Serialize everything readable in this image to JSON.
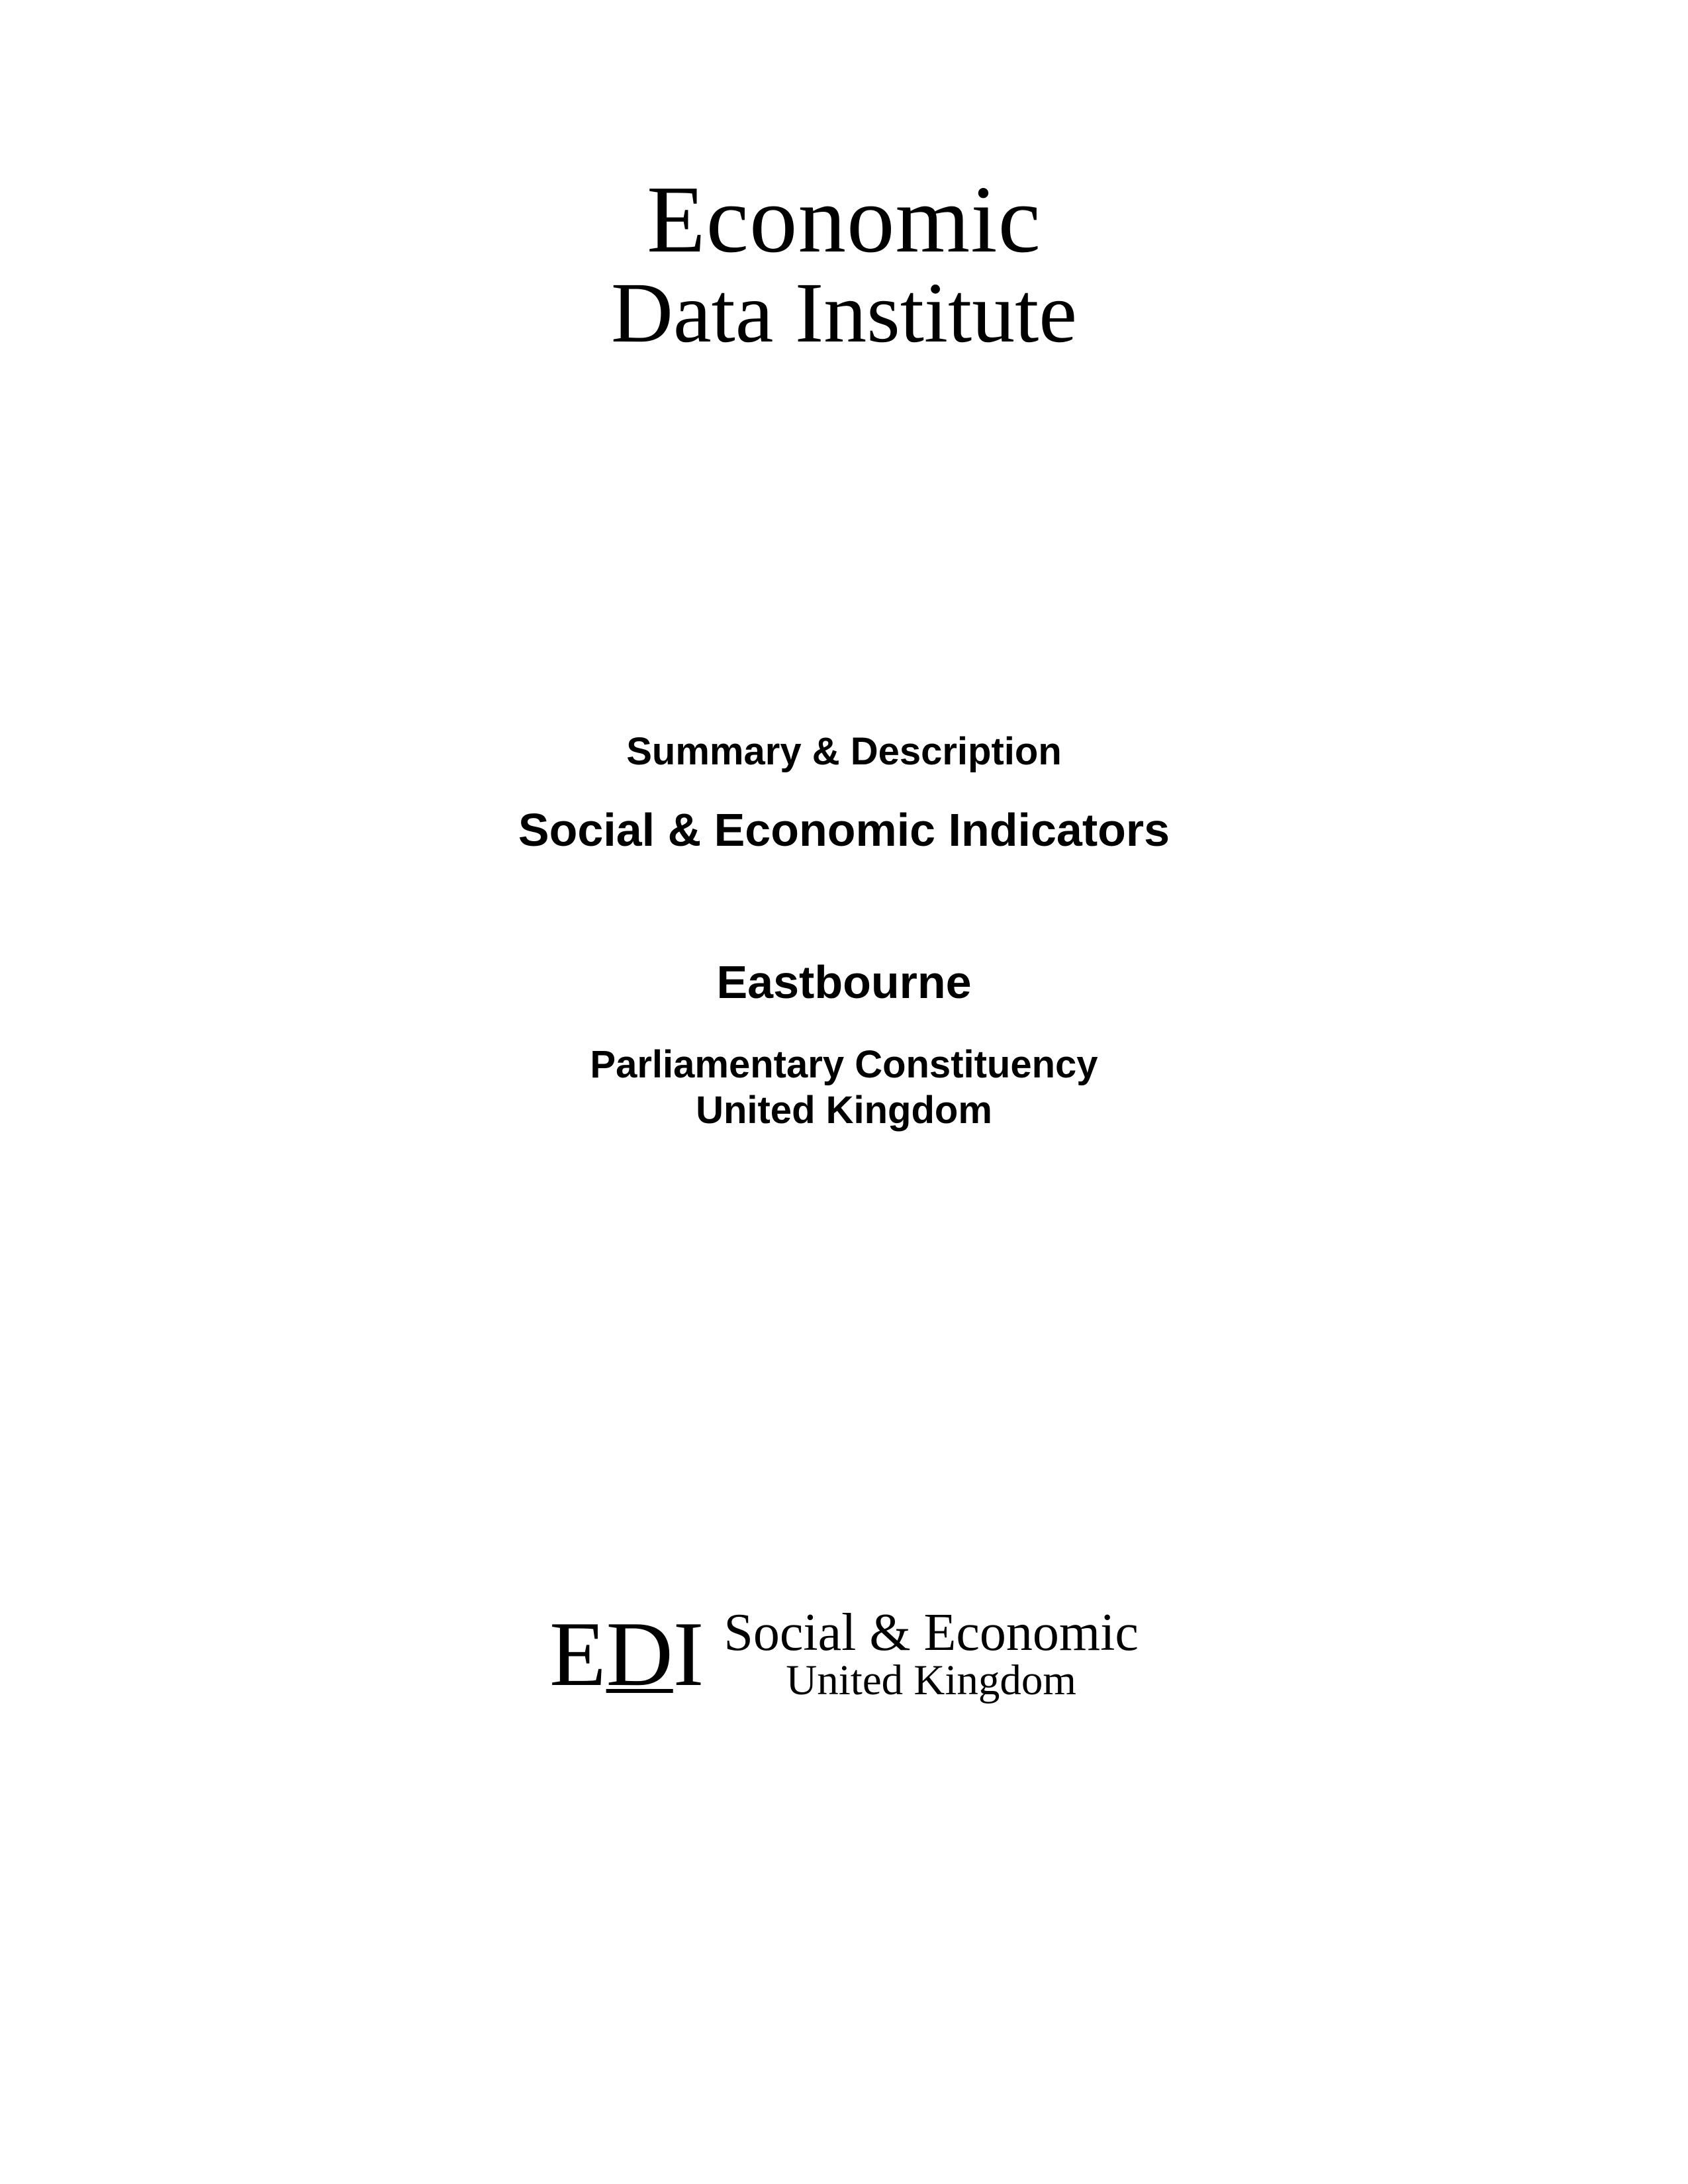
{
  "header": {
    "line1": "Economic",
    "line2": "Data Institute"
  },
  "titleBlock": {
    "summary": "Summary & Description",
    "mainTitle": "Social & Economic Indicators",
    "location": "Eastbourne",
    "subtitle1": "Parliamentary Constituency",
    "subtitle2": "United Kingdom"
  },
  "footer": {
    "mark": {
      "e": "E",
      "d": "D",
      "i": "I"
    },
    "line1": "Social & Economic",
    "line2": "United Kingdom"
  },
  "colors": {
    "background": "#ffffff",
    "text": "#000000"
  },
  "typography": {
    "header_fontsize": 145,
    "header_line2_fontsize": 130,
    "summary_fontsize": 58,
    "main_title_fontsize": 70,
    "location_fontsize": 70,
    "subtitle_fontsize": 58,
    "edi_mark_fontsize": 140,
    "footer_line1_fontsize": 80,
    "footer_line2_fontsize": 65
  }
}
